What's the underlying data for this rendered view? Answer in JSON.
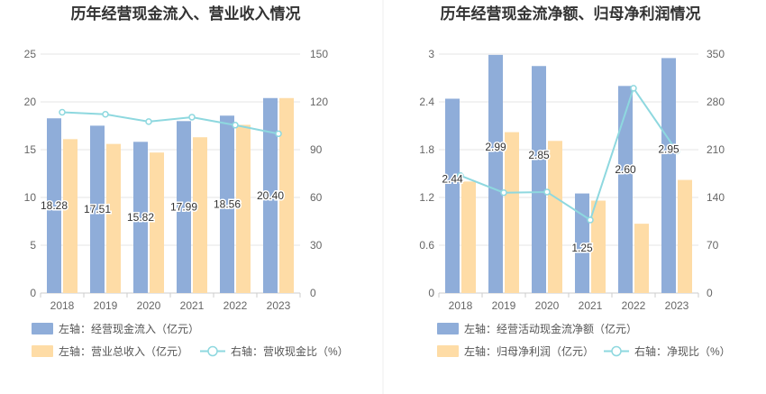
{
  "chart_data": [
    {
      "type": "bar",
      "title": "历年经营现金流入、营业收入情况",
      "categories": [
        "2018",
        "2019",
        "2020",
        "2021",
        "2022",
        "2023"
      ],
      "left_axis": {
        "min": 0,
        "max": 25,
        "ticks": [
          "0",
          "5",
          "10",
          "15",
          "20",
          "25"
        ]
      },
      "right_axis": {
        "min": 0,
        "max": 150,
        "ticks": [
          "0",
          "30",
          "60",
          "90",
          "120",
          "150"
        ]
      },
      "series": [
        {
          "name": "左轴：经营现金流入（亿元）",
          "kind": "bar",
          "axis": "left",
          "color": "#8fadd9",
          "values": [
            18.28,
            17.51,
            15.82,
            17.99,
            18.56,
            20.4
          ],
          "labels": [
            "18.28",
            "17.51",
            "15.82",
            "17.99",
            "18.56",
            "20.40"
          ]
        },
        {
          "name": "左轴：营业总收入（亿元）",
          "kind": "bar",
          "axis": "left",
          "color": "#fedca6",
          "values": [
            16.1,
            15.6,
            14.7,
            16.3,
            17.6,
            20.4
          ]
        },
        {
          "name": "右轴：营收现金比（%）",
          "kind": "line",
          "axis": "right",
          "color": "#8ed8df",
          "values": [
            113.5,
            112.2,
            107.6,
            110.4,
            105.4,
            100.0
          ]
        }
      ],
      "grid": true
    },
    {
      "type": "bar",
      "title": "历年经营现金流净额、归母净利润情况",
      "categories": [
        "2018",
        "2019",
        "2020",
        "2021",
        "2022",
        "2023"
      ],
      "left_axis": {
        "min": 0,
        "max": 3,
        "ticks": [
          "0",
          "0.6",
          "1.2",
          "1.8",
          "2.4",
          "3"
        ]
      },
      "right_axis": {
        "min": 0,
        "max": 350,
        "ticks": [
          "0",
          "70",
          "140",
          "210",
          "280",
          "350"
        ]
      },
      "series": [
        {
          "name": "左轴：经营活动现金流净额（亿元）",
          "kind": "bar",
          "axis": "left",
          "color": "#8fadd9",
          "values": [
            2.44,
            2.99,
            2.85,
            1.25,
            2.6,
            2.95
          ],
          "labels": [
            "2.44",
            "2.99",
            "2.85",
            "1.25",
            "2.60",
            "2.95"
          ]
        },
        {
          "name": "左轴：归母净利润（亿元）",
          "kind": "bar",
          "axis": "left",
          "color": "#fedca6",
          "values": [
            1.4,
            2.02,
            1.91,
            1.16,
            0.87,
            1.42
          ]
        },
        {
          "name": "右轴：净现比（%）",
          "kind": "line",
          "axis": "right",
          "color": "#8ed8df",
          "values": [
            172,
            147,
            148,
            107,
            300,
            208
          ]
        }
      ],
      "grid": true
    }
  ]
}
